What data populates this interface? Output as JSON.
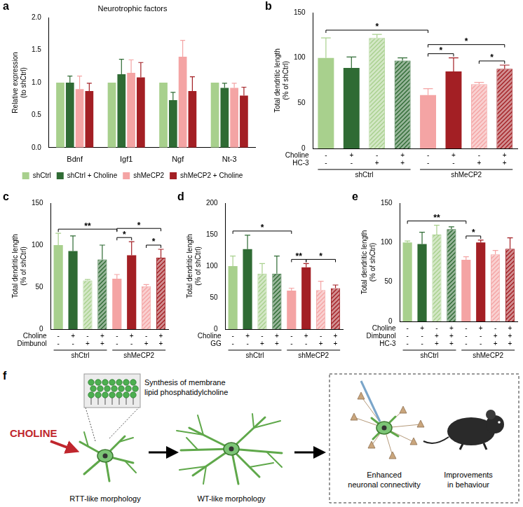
{
  "chart_data": [
    {
      "panel": "a",
      "type": "bar",
      "title": "Neurotrophic factors",
      "y_label": [
        "Relative expression",
        "(to shCtrl)"
      ],
      "categories": [
        "Bdnf",
        "Igf1",
        "Ngf",
        "Nt-3"
      ],
      "series": [
        {
          "name": "shCtrl",
          "color": "#a8d08d",
          "values": [
            1.0,
            1.0,
            1.0,
            1.0
          ],
          "errors": [
            null,
            null,
            null,
            null
          ]
        },
        {
          "name": "shCtrl + Choline",
          "color": "#2f6b34",
          "values": [
            1.0,
            1.13,
            0.73,
            0.92
          ],
          "errors": [
            0.1,
            0.23,
            0.12,
            0.07
          ]
        },
        {
          "name": "shMeCP2",
          "color": "#f4a4a4",
          "values": [
            0.9,
            1.15,
            1.4,
            0.92
          ],
          "errors": [
            0.2,
            0.2,
            0.25,
            0.07
          ]
        },
        {
          "name": "shMeCP2 + Choline",
          "color": "#a31f24",
          "values": [
            0.87,
            1.08,
            0.87,
            0.8
          ],
          "errors": [
            0.12,
            0.23,
            0.22,
            0.13
          ]
        }
      ],
      "ylim": [
        0,
        2
      ],
      "yticks": [
        {
          "value": 0,
          "label": "0.0"
        },
        {
          "value": 0.5,
          "label": "0.5"
        },
        {
          "value": 1,
          "label": "1.0"
        },
        {
          "value": 1.5,
          "label": "1.5"
        },
        {
          "value": 2,
          "label": "2.0"
        }
      ],
      "grid": false,
      "legend": "bottom"
    },
    {
      "panel": "b",
      "type": "bar",
      "y_label": [
        "Total dendritic length",
        "(% of shCtrl)"
      ],
      "values": [
        100,
        89,
        122,
        97,
        59,
        85,
        71,
        88
      ],
      "errors": [
        22,
        12,
        4,
        3,
        7,
        15,
        2,
        4
      ],
      "colors": [
        "#a8d08d",
        "#2f6b34",
        "#a8d08d",
        "#2f6b34",
        "#f4a4a4",
        "#a31f24",
        "#f4a4a4",
        "#a31f24"
      ],
      "conditions": [
        {
          "label": "Choline",
          "signs": [
            "-",
            "+",
            "-",
            "+",
            "-",
            "+",
            "-",
            "+"
          ]
        },
        {
          "label": "HC-3",
          "signs": [
            "-",
            "-",
            "+",
            "+",
            "-",
            "-",
            "+",
            "+"
          ]
        }
      ],
      "groups": [
        {
          "name": "shCtrl",
          "from": 0,
          "to": 3
        },
        {
          "name": "shMeCP2",
          "from": 4,
          "to": 7
        }
      ],
      "significance": [
        {
          "from": 0,
          "to": 4,
          "label": "*"
        },
        {
          "from": 4,
          "to": 5,
          "label": "*"
        },
        {
          "from": 6,
          "to": 7,
          "label": "*"
        },
        {
          "from": 4,
          "to": 7,
          "label": "*"
        }
      ],
      "ylim": [
        0,
        150
      ],
      "yticks": [
        0,
        50,
        100,
        150
      ],
      "grid": false
    },
    {
      "panel": "c",
      "type": "bar",
      "y_label": [
        "Total dendritic length",
        "(% of shCtrl)"
      ],
      "values": [
        100,
        93,
        58,
        83,
        60,
        88,
        51,
        85
      ],
      "errors": [
        14,
        18,
        1,
        17,
        5,
        16,
        2,
        10
      ],
      "colors": [
        "#a8d08d",
        "#2f6b34",
        "#a8d08d",
        "#2f6b34",
        "#f4a4a4",
        "#a31f24",
        "#f4a4a4",
        "#a31f24"
      ],
      "conditions": [
        {
          "label": "Choline",
          "signs": [
            "-",
            "+",
            "-",
            "+",
            "-",
            "+",
            "-",
            "+"
          ]
        },
        {
          "label": "Dimbunol",
          "signs": [
            "-",
            "-",
            "+",
            "+",
            "-",
            "-",
            "+",
            "+"
          ]
        }
      ],
      "groups": [
        {
          "name": "shCtrl",
          "from": 0,
          "to": 3
        },
        {
          "name": "shMeCP2",
          "from": 4,
          "to": 7
        }
      ],
      "significance": [
        {
          "from": 0,
          "to": 4,
          "label": "**"
        },
        {
          "from": 4,
          "to": 5,
          "label": "*"
        },
        {
          "from": 6,
          "to": 7,
          "label": "*"
        },
        {
          "from": 4,
          "to": 7,
          "label": "*"
        }
      ],
      "ylim": [
        0,
        150
      ],
      "yticks": [
        0,
        50,
        100,
        150
      ],
      "grid": false
    },
    {
      "panel": "d",
      "type": "bar",
      "y_label": [
        "Total dendritic length",
        "(% of shCtrl)"
      ],
      "values": [
        100,
        127,
        88,
        88,
        61,
        98,
        62,
        65
      ],
      "errors": [
        16,
        22,
        16,
        28,
        4,
        6,
        14,
        5
      ],
      "colors": [
        "#a8d08d",
        "#2f6b34",
        "#a8d08d",
        "#2f6b34",
        "#f4a4a4",
        "#a31f24",
        "#f4a4a4",
        "#a31f24"
      ],
      "conditions": [
        {
          "label": "Choline",
          "signs": [
            "-",
            "+",
            "-",
            "+",
            "-",
            "+",
            "-",
            "+"
          ]
        },
        {
          "label": "GG",
          "signs": [
            "-",
            "-",
            "+",
            "+",
            "-",
            "-",
            "+",
            "+"
          ]
        }
      ],
      "groups": [
        {
          "name": "shCtrl",
          "from": 0,
          "to": 3
        },
        {
          "name": "shMeCP2",
          "from": 4,
          "to": 7
        }
      ],
      "significance": [
        {
          "from": 0,
          "to": 4,
          "label": "*"
        },
        {
          "from": 4,
          "to": 5,
          "label": "**"
        },
        {
          "from": 5,
          "to": 7,
          "label": "*"
        }
      ],
      "ylim": [
        0,
        200
      ],
      "yticks": [
        0,
        50,
        100,
        150,
        200
      ],
      "grid": false
    },
    {
      "panel": "e",
      "type": "bar",
      "y_label": [
        "Total dendritic length",
        "(% of shCtrl)"
      ],
      "values": [
        100,
        98,
        110,
        117,
        78,
        100,
        85,
        92
      ],
      "errors": [
        2,
        15,
        12,
        3,
        4,
        3,
        5,
        14
      ],
      "colors": [
        "#a8d08d",
        "#2f6b34",
        "#a8d08d",
        "#2f6b34",
        "#f4a4a4",
        "#a31f24",
        "#f4a4a4",
        "#a31f24"
      ],
      "conditions": [
        {
          "label": "Choline",
          "signs": [
            "-",
            "+",
            "-",
            "+",
            "-",
            "+",
            "-",
            "+"
          ]
        },
        {
          "label": "Dimbunol",
          "signs": [
            "-",
            "-",
            "+",
            "+",
            "-",
            "-",
            "+",
            "+"
          ]
        },
        {
          "label": "HC-3",
          "signs": [
            "-",
            "-",
            "+",
            "+",
            "-",
            "-",
            "+",
            "+"
          ]
        }
      ],
      "groups": [
        {
          "name": "shCtrl",
          "from": 0,
          "to": 3
        },
        {
          "name": "shMeCP2",
          "from": 4,
          "to": 7
        }
      ],
      "significance": [
        {
          "from": 0,
          "to": 4,
          "label": "**"
        },
        {
          "from": 4,
          "to": 5,
          "label": "*"
        }
      ],
      "ylim": [
        0,
        150
      ],
      "yticks": [
        0,
        50,
        100,
        150
      ],
      "grid": false
    }
  ],
  "diagram": {
    "panel": "f",
    "input": "CHOLINE",
    "inset": [
      "Synthesis of membrane",
      "lipid phosphatidylcholine"
    ],
    "stages": [
      "RTT-like morphology",
      "WT-like morphology"
    ],
    "outcomes": [
      [
        "Enhanced",
        "neuronal connectivity"
      ],
      [
        "Improvements",
        "in behaviour"
      ]
    ]
  }
}
